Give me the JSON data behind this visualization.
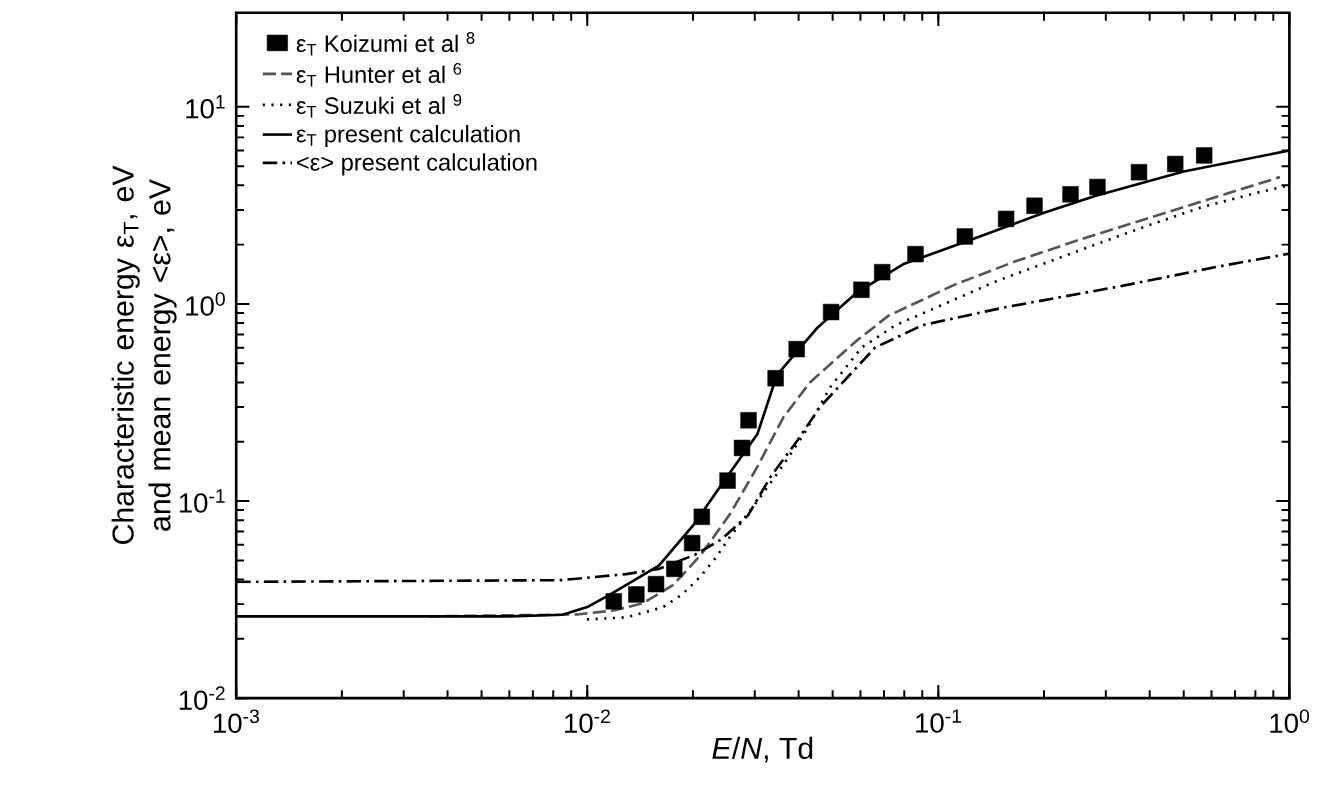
{
  "chart_data": {
    "type": "line",
    "xlabel": "*E*/*N*, Td",
    "ylabel": "Characteristic energy ε$_{T}$, eV and mean energy <ε>, eV",
    "log": "xy",
    "xlim": [
      0.001,
      1
    ],
    "ylim": [
      0.01,
      30
    ],
    "xticks": [
      {
        "value": 0.001,
        "label": "10$^{-3}$"
      },
      {
        "value": 0.01,
        "label": "10$^{-2}$"
      },
      {
        "value": 0.1,
        "label": "10$^{-1}$"
      },
      {
        "value": 1,
        "label": "10$^{0}$"
      }
    ],
    "yticks": [
      {
        "value": 0.01,
        "label": "10$^{-2}$"
      },
      {
        "value": 0.1,
        "label": "10$^{-1}$"
      },
      {
        "value": 1,
        "label": "10$^{0}$"
      },
      {
        "value": 10,
        "label": "10$^{1}$"
      }
    ],
    "legend": "top left",
    "grid": false,
    "series": [
      {
        "name": "ε$_{T}$  Koizumi et al $^{8}$",
        "type": "scatter",
        "marker": "square",
        "color": "#000000",
        "x": [
          0.0119,
          0.0138,
          0.0157,
          0.0177,
          0.0199,
          0.0212,
          0.0251,
          0.0276,
          0.0288,
          0.0344,
          0.0395,
          0.0495,
          0.0604,
          0.0692,
          0.0861,
          0.119,
          0.156,
          0.188,
          0.238,
          0.284,
          0.373,
          0.473,
          0.572
        ],
        "values": [
          0.031,
          0.0336,
          0.0379,
          0.0453,
          0.0612,
          0.0832,
          0.127,
          0.186,
          0.257,
          0.42,
          0.59,
          0.91,
          1.18,
          1.45,
          1.79,
          2.2,
          2.7,
          3.15,
          3.6,
          3.92,
          4.66,
          5.13,
          5.67
        ]
      },
      {
        "name": "ε$_{T}$ Hunter et al $^{6}$",
        "line_style": "dashed",
        "color": "#555555",
        "x": [
          0.0035,
          0.00935,
          0.0118,
          0.0144,
          0.0176,
          0.0211,
          0.0256,
          0.0305,
          0.0362,
          0.0431,
          0.0585,
          0.072,
          0.111,
          0.165,
          0.259,
          0.5,
          0.94
        ],
        "values": [
          0.026,
          0.0266,
          0.0278,
          0.0303,
          0.0376,
          0.0535,
          0.0868,
          0.149,
          0.266,
          0.4,
          0.65,
          0.87,
          1.25,
          1.64,
          2.15,
          3.1,
          4.4
        ]
      },
      {
        "name": "ε$_{T}$ Suzuki et al $^{9}$",
        "line_style": "dotted",
        "color": "#000000",
        "x": [
          0.00998,
          0.0129,
          0.0164,
          0.0186,
          0.0209,
          0.0232,
          0.0252,
          0.0305,
          0.0348,
          0.0415,
          0.0493,
          0.0604,
          0.0755,
          0.0988,
          0.144,
          0.238,
          0.388,
          0.56,
          0.81,
          1
        ],
        "values": [
          0.0251,
          0.0257,
          0.0289,
          0.0335,
          0.041,
          0.0514,
          0.064,
          0.0998,
          0.138,
          0.22,
          0.38,
          0.6,
          0.78,
          0.96,
          1.29,
          1.8,
          2.47,
          3.09,
          3.67,
          4.0
        ]
      },
      {
        "name": "ε$_{T}$ present calculation",
        "line_style": "solid",
        "color": "#000000",
        "x": [
          0.001,
          0.006,
          0.0085,
          0.01,
          0.0116,
          0.016,
          0.02,
          0.0247,
          0.0305,
          0.0347,
          0.045,
          0.0585,
          0.08,
          0.119,
          0.2,
          0.281,
          0.5,
          1
        ],
        "values": [
          0.026,
          0.026,
          0.0265,
          0.029,
          0.0335,
          0.047,
          0.075,
          0.1285,
          0.218,
          0.436,
          0.75,
          1.14,
          1.6,
          2.06,
          2.9,
          3.54,
          4.7,
          6.0
        ]
      },
      {
        "name": "<ε> present calculation",
        "line_style": "dashdot",
        "color": "#000000",
        "x": [
          0.001,
          0.0084,
          0.0129,
          0.016,
          0.0203,
          0.0241,
          0.0287,
          0.0333,
          0.0397,
          0.046,
          0.066,
          0.09,
          0.154,
          0.33,
          0.63,
          1
        ],
        "values": [
          0.0389,
          0.0397,
          0.0426,
          0.0453,
          0.0535,
          0.064,
          0.0846,
          0.133,
          0.203,
          0.3,
          0.6,
          0.78,
          0.96,
          1.23,
          1.55,
          1.8
        ]
      }
    ]
  }
}
